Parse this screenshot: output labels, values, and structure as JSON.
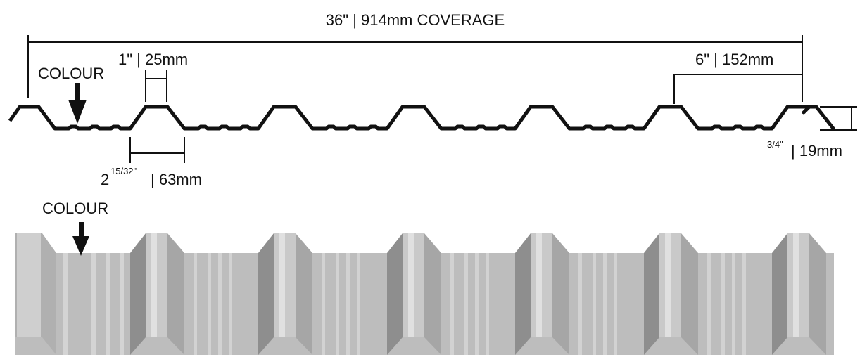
{
  "dimensions": {
    "coverage": "36\" | 914mm  COVERAGE",
    "rib_top": "1\" | 25mm",
    "rib_spacing": "6\" | 152mm",
    "rib_base": {
      "whole": "2",
      "fraction": "15/32\"",
      "metric": "| 63mm"
    },
    "rib_height": {
      "fraction": "3/4\"",
      "metric": "| 19mm"
    }
  },
  "labels": {
    "profile_colour": "COLOUR",
    "panel_colour": "COLOUR"
  }
}
